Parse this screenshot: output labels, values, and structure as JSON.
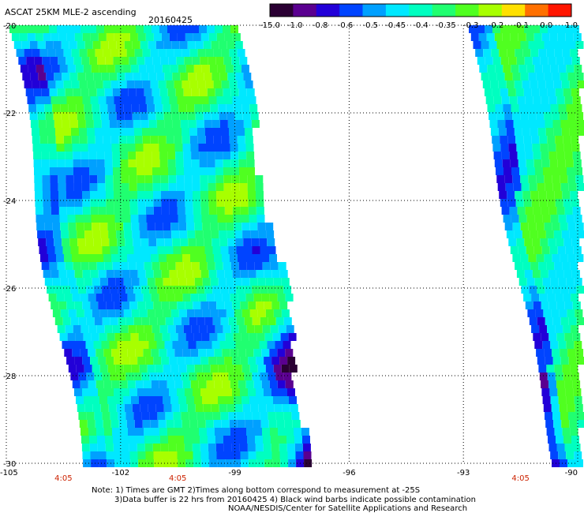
{
  "header": {
    "title": "ASCAT 25KM MLE-2 ascending",
    "date": "20160425"
  },
  "colorbar": {
    "labels": [
      "-15.0",
      "-1.0",
      "-0.8",
      "-0.6",
      "-0.5",
      "-0.45",
      "-0.4",
      "-0.35",
      "-0.3",
      "-0.2",
      "-0.1",
      "0.0",
      "1.0"
    ],
    "colors": [
      "#2a0033",
      "#5a0090",
      "#2200d8",
      "#0044ff",
      "#00a0ff",
      "#00e8ff",
      "#00ffc0",
      "#20ff70",
      "#50ff20",
      "#a8ff00",
      "#ffe000",
      "#ff7000",
      "#ff1500"
    ]
  },
  "axes": {
    "lat_labels": [
      "-20",
      "-22",
      "-24",
      "-26",
      "-28",
      "-30"
    ],
    "lat_values": [
      -20,
      -22,
      -24,
      -26,
      -28,
      -30
    ],
    "lon_labels": [
      "-105",
      "-102",
      "-99",
      "-96",
      "-93",
      "-90"
    ],
    "lon_values": [
      -105,
      -102,
      -99,
      -96,
      -93,
      -90
    ],
    "xlim": [
      -105,
      -90
    ],
    "ylim": [
      -30,
      -20
    ],
    "grid": true
  },
  "time_labels": [
    {
      "text": "4:05",
      "lon": -103.5
    },
    {
      "text": "4:05",
      "lon": -100.5
    },
    {
      "text": "4:05",
      "lon": -91.5
    }
  ],
  "notes": {
    "line1": "Note: 1) Times are GMT 2)Times along bottom correspond to measurement at -25S",
    "line2": "3)Data buffer is 22 hrs from 20160425 4) Black wind barbs indicate possible contamination",
    "line3": "NOAA/NESDIS/Center for Satellite Applications and Research"
  }
}
